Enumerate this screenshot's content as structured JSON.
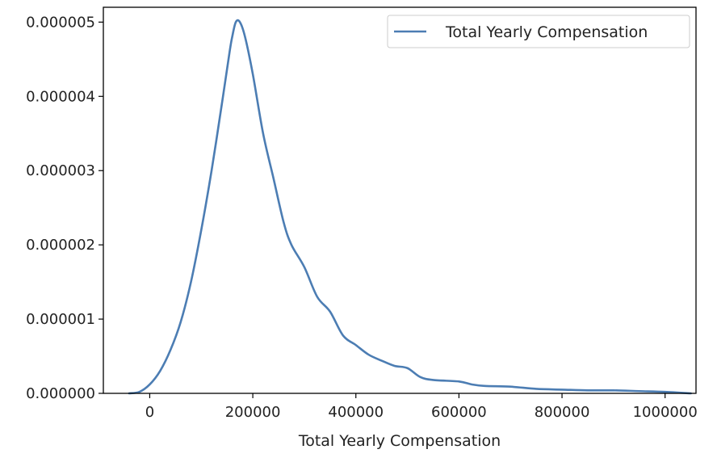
{
  "chart_data": {
    "type": "line",
    "title": "",
    "xlabel": "Total Yearly Compensation",
    "ylabel": "",
    "xlim": [
      -90000,
      1060000
    ],
    "ylim": [
      0,
      5.2e-06
    ],
    "xticks": [
      0,
      200000,
      400000,
      600000,
      800000,
      1000000
    ],
    "xtick_labels": [
      "0",
      "200000",
      "400000",
      "600000",
      "800000",
      "1000000"
    ],
    "yticks": [
      0,
      1e-06,
      2e-06,
      3e-06,
      4e-06,
      5e-06
    ],
    "ytick_labels": [
      "0.000000",
      "0.000001",
      "0.000002",
      "0.000003",
      "0.000004",
      "0.000005"
    ],
    "grid": false,
    "legend_position": "top-right",
    "series": [
      {
        "name": "Total Yearly Compensation",
        "color": "#4c7db3",
        "points": [
          [
            -40000,
            0.0
          ],
          [
            -20000,
            2e-08
          ],
          [
            0,
            1.2e-07
          ],
          [
            20000,
            3e-07
          ],
          [
            40000,
            5.8e-07
          ],
          [
            60000,
            9.6e-07
          ],
          [
            80000,
            1.5e-06
          ],
          [
            100000,
            2.2e-06
          ],
          [
            120000,
            3e-06
          ],
          [
            140000,
            3.9e-06
          ],
          [
            155000,
            4.6e-06
          ],
          [
            160000,
            4.8e-06
          ],
          [
            167000,
            5e-06
          ],
          [
            175000,
            5e-06
          ],
          [
            185000,
            4.8e-06
          ],
          [
            200000,
            4.3e-06
          ],
          [
            220000,
            3.5e-06
          ],
          [
            240000,
            2.9e-06
          ],
          [
            260000,
            2.3e-06
          ],
          [
            275000,
            2e-06
          ],
          [
            300000,
            1.7e-06
          ],
          [
            325000,
            1.3e-06
          ],
          [
            350000,
            1.1e-06
          ],
          [
            375000,
            7.8e-07
          ],
          [
            400000,
            6.5e-07
          ],
          [
            425000,
            5.2e-07
          ],
          [
            450000,
            4.4e-07
          ],
          [
            475000,
            3.7e-07
          ],
          [
            500000,
            3.4e-07
          ],
          [
            525000,
            2.2e-07
          ],
          [
            550000,
            1.8e-07
          ],
          [
            600000,
            1.6e-07
          ],
          [
            625000,
            1.2e-07
          ],
          [
            650000,
            1e-07
          ],
          [
            700000,
            9e-08
          ],
          [
            750000,
            6e-08
          ],
          [
            800000,
            5e-08
          ],
          [
            850000,
            4e-08
          ],
          [
            900000,
            4e-08
          ],
          [
            950000,
            3e-08
          ],
          [
            1000000,
            2e-08
          ],
          [
            1050000,
            0.0
          ]
        ]
      }
    ]
  }
}
